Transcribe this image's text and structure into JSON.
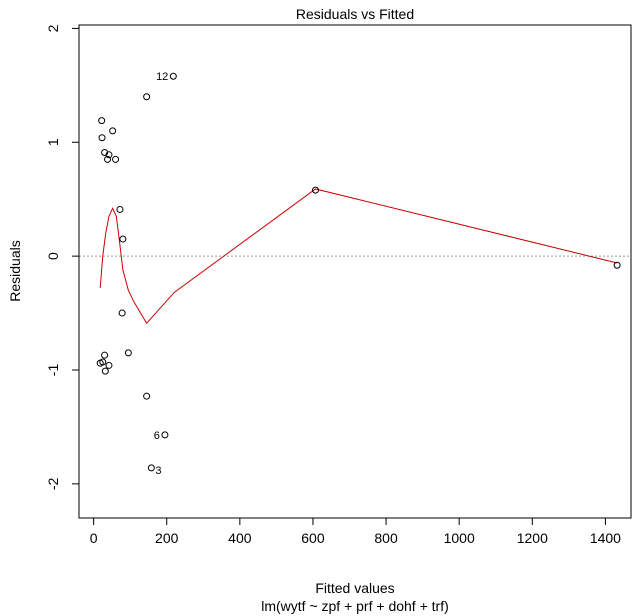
{
  "chart_data": {
    "type": "scatter",
    "title": "Residuals vs Fitted",
    "xlabel": "Fitted values",
    "subtitle": "lm(wytf ~ zpf + prf + dohf + trf)",
    "ylabel": "Residuals",
    "xlim": [
      -40,
      1470
    ],
    "ylim": [
      -2.3,
      2.03
    ],
    "x_ticks": [
      0,
      200,
      400,
      600,
      800,
      1000,
      1200,
      1400
    ],
    "x_tick_labels": [
      "0",
      "200",
      "400",
      "600",
      "800",
      "1000",
      "1200",
      "1400"
    ],
    "y_ticks": [
      -2,
      -1,
      0,
      1,
      2
    ],
    "y_tick_labels": [
      "-2",
      "-1",
      "0",
      "1",
      "2"
    ],
    "reference_line": {
      "y": 0,
      "style": "dotted",
      "color": "#999999"
    },
    "points": [
      {
        "x": 22,
        "y": 1.19
      },
      {
        "x": 23,
        "y": 1.04
      },
      {
        "x": 52,
        "y": 1.1
      },
      {
        "x": 145,
        "y": 1.4
      },
      {
        "x": 218,
        "y": 1.58,
        "label": "12"
      },
      {
        "x": 30,
        "y": 0.91
      },
      {
        "x": 42,
        "y": 0.89
      },
      {
        "x": 38,
        "y": 0.85
      },
      {
        "x": 60,
        "y": 0.85
      },
      {
        "x": 72,
        "y": 0.41
      },
      {
        "x": 80,
        "y": 0.15
      },
      {
        "x": 607,
        "y": 0.58
      },
      {
        "x": 1432,
        "y": -0.08
      },
      {
        "x": 78,
        "y": -0.5
      },
      {
        "x": 95,
        "y": -0.85
      },
      {
        "x": 30,
        "y": -0.87
      },
      {
        "x": 18,
        "y": -0.94
      },
      {
        "x": 25,
        "y": -0.93
      },
      {
        "x": 42,
        "y": -0.96
      },
      {
        "x": 32,
        "y": -1.01
      },
      {
        "x": 145,
        "y": -1.23
      },
      {
        "x": 195,
        "y": -1.57,
        "label": "6"
      },
      {
        "x": 158,
        "y": -1.86,
        "label": "3"
      }
    ],
    "smooth_line": {
      "color": "#cc0000",
      "x": [
        18,
        25,
        33,
        42,
        52,
        62,
        70,
        80,
        95,
        110,
        145,
        220,
        607,
        1432
      ],
      "y": [
        -0.28,
        0.0,
        0.2,
        0.35,
        0.42,
        0.35,
        0.15,
        -0.12,
        -0.3,
        -0.4,
        -0.59,
        -0.32,
        0.59,
        -0.06
      ]
    }
  }
}
